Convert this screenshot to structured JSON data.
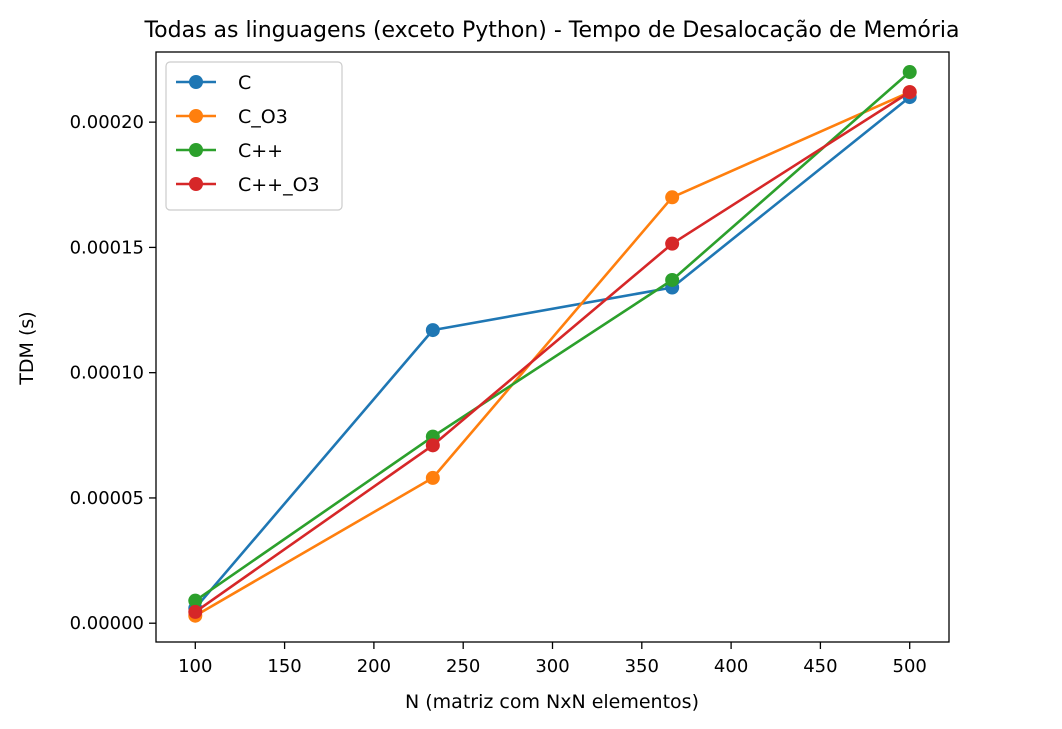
{
  "chart_data": {
    "type": "line",
    "title": "Todas as linguagens (exceto Python) - Tempo de Desalocação de Memória",
    "xlabel": "N (matriz com NxN elementos)",
    "ylabel": "TDM (s)",
    "x": [
      100,
      233,
      367,
      500
    ],
    "xlim": [
      78,
      522
    ],
    "ylim": [
      -7.5e-06,
      0.000228
    ],
    "xticks": [
      100,
      150,
      200,
      250,
      300,
      350,
      400,
      450,
      500
    ],
    "yticks": [
      0.0,
      5e-05,
      0.0001,
      0.00015,
      0.0002
    ],
    "ytick_labels": [
      "0.00000",
      "0.00005",
      "0.00010",
      "0.00015",
      "0.00020"
    ],
    "grid": false,
    "legend_position": "upper-left",
    "marker": "circle",
    "series": [
      {
        "name": "C",
        "color": "#1f77b4",
        "values": [
          6e-06,
          0.000117,
          0.000134,
          0.00021
        ]
      },
      {
        "name": "C_O3",
        "color": "#ff7f0e",
        "values": [
          3e-06,
          5.8e-05,
          0.00017,
          0.000212
        ]
      },
      {
        "name": "C++",
        "color": "#2ca02c",
        "values": [
          9e-06,
          7.45e-05,
          0.000137,
          0.00022
        ]
      },
      {
        "name": "C++_O3",
        "color": "#d62728",
        "values": [
          4.5e-06,
          7.1e-05,
          0.0001515,
          0.000212
        ]
      }
    ]
  }
}
